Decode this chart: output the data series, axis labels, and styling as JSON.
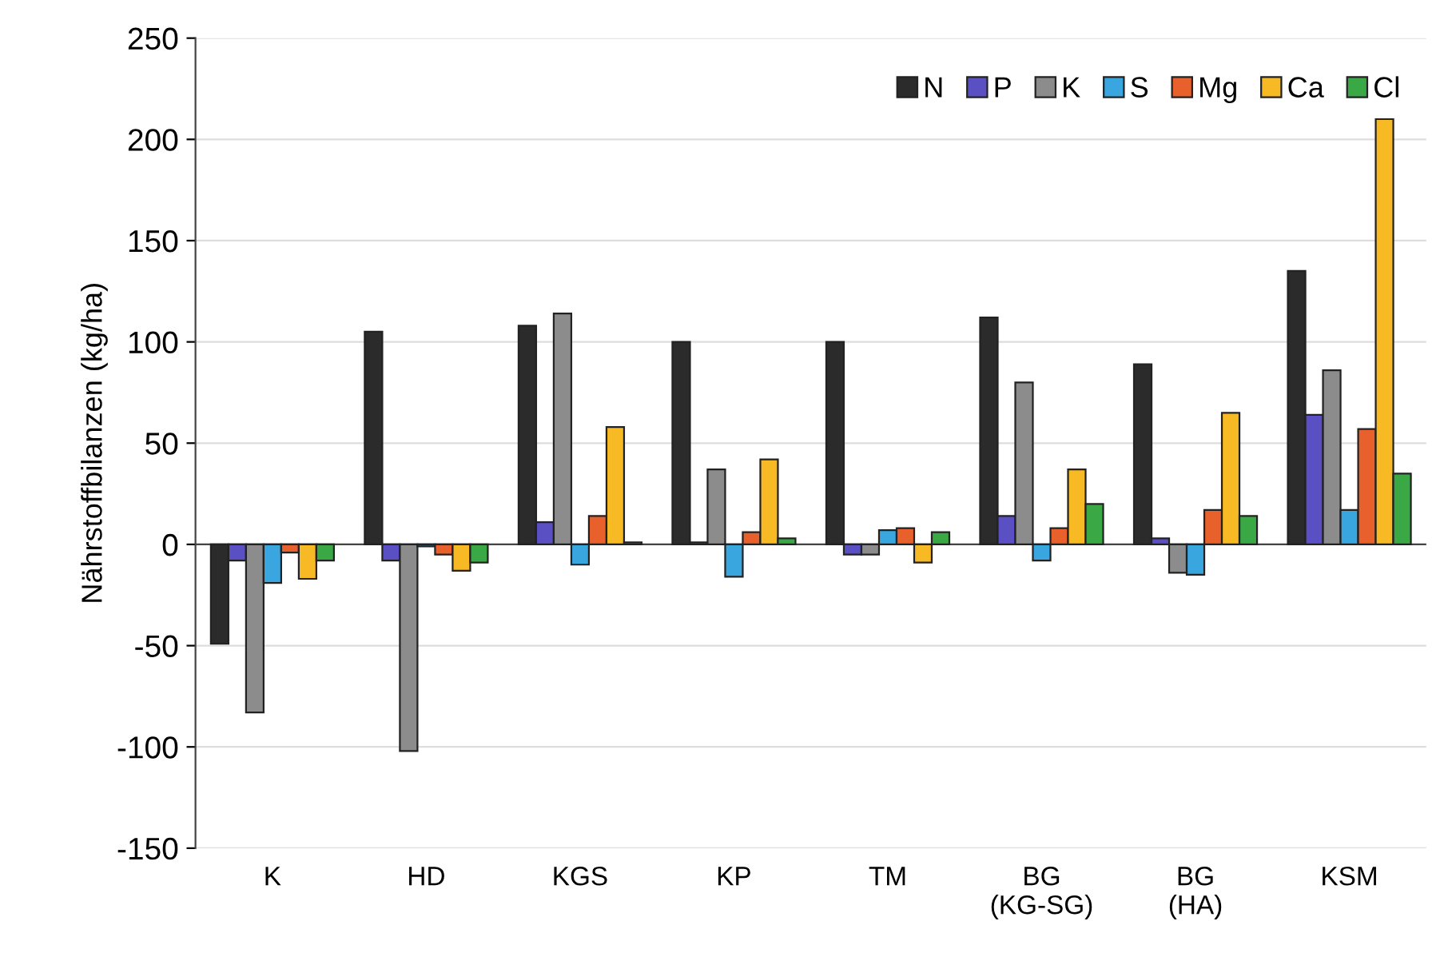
{
  "chart_data": {
    "type": "bar",
    "ylabel": "Nährstoffbilanzen (kg/ha)",
    "categories": [
      "K",
      "HD",
      "KGS",
      "KP",
      "TM",
      "BG\n(KG-SG)",
      "BG\n(HA)",
      "KSM"
    ],
    "series": [
      {
        "name": "N",
        "color": "#2b2b2b",
        "values": [
          -49,
          105,
          108,
          100,
          100,
          112,
          89,
          135
        ]
      },
      {
        "name": "P",
        "color": "#5b4fc4",
        "values": [
          -8,
          -8,
          11,
          1,
          -5,
          14,
          3,
          64
        ]
      },
      {
        "name": "K",
        "color": "#8c8c8c",
        "values": [
          -83,
          -102,
          114,
          37,
          -5,
          80,
          -14,
          86
        ]
      },
      {
        "name": "S",
        "color": "#3aa6e0",
        "values": [
          -19,
          -1,
          -10,
          -16,
          7,
          -8,
          -15,
          17
        ]
      },
      {
        "name": "Mg",
        "color": "#e8602c",
        "values": [
          -4,
          -5,
          14,
          6,
          8,
          8,
          17,
          57
        ]
      },
      {
        "name": "Ca",
        "color": "#f7b924",
        "values": [
          -17,
          -13,
          58,
          42,
          -9,
          37,
          65,
          210
        ]
      },
      {
        "name": "Cl",
        "color": "#3aa845",
        "values": [
          -8,
          -9,
          1,
          3,
          6,
          20,
          14,
          35
        ]
      }
    ],
    "ylim": [
      -150,
      250
    ],
    "yticks": [
      -150,
      -100,
      -50,
      0,
      50,
      100,
      150,
      200,
      250
    ],
    "grid": "y",
    "legend": "top right"
  }
}
